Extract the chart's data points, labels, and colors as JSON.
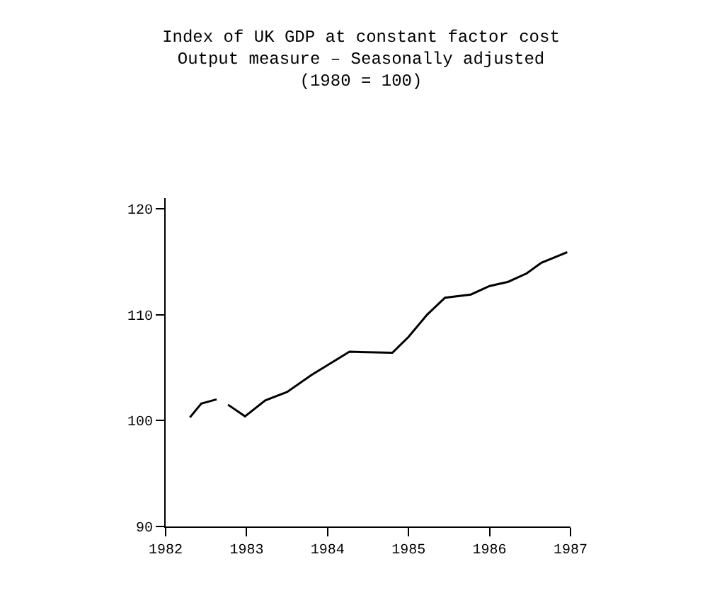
{
  "chart_data": {
    "type": "line",
    "title": "Index of UK GDP at constant factor cost\nOutput measure – Seasonally adjusted\n(1980 = 100)",
    "x": [
      1982.3,
      1982.44,
      1982.63,
      1982.7,
      1982.77,
      1982.98,
      1983.23,
      1983.5,
      1983.8,
      1984.27,
      1984.8,
      1985.0,
      1985.23,
      1985.45,
      1985.77,
      1986.0,
      1986.23,
      1986.46,
      1986.64,
      1986.96
    ],
    "series": [
      {
        "color": "#000000",
        "values": [
          100.3,
          101.6,
          102.0,
          null,
          101.5,
          100.4,
          101.9,
          102.7,
          104.3,
          106.5,
          106.4,
          107.9,
          110.0,
          111.6,
          111.9,
          112.7,
          113.1,
          113.9,
          114.9,
          115.9
        ]
      }
    ],
    "xlim": [
      1982,
      1987
    ],
    "xticks": [
      1982,
      1983,
      1984,
      1985,
      1986,
      1987
    ],
    "ylim": [
      90,
      121
    ],
    "yticks": [
      90,
      100,
      110,
      120
    ],
    "marker": "none",
    "line_style": "solid"
  }
}
